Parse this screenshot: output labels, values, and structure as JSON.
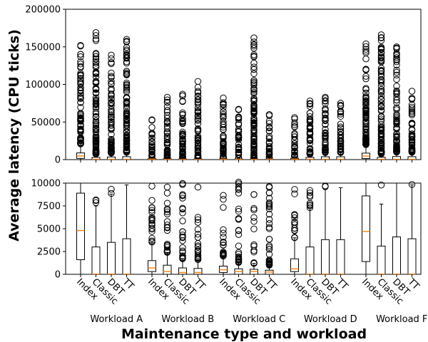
{
  "chart_data": {
    "type": "boxplot",
    "title": "",
    "xlabel": "Maintenance type and workload",
    "ylabel": "Average latency (CPU ticks)",
    "legend": "none",
    "grid": false,
    "categories": [
      "Index",
      "Classic",
      "DBT",
      "TT"
    ],
    "workloads": [
      "Workload A",
      "Workload B",
      "Workload C",
      "Workload D",
      "Workload F"
    ],
    "panels": [
      {
        "name": "top",
        "ylim": [
          0,
          200000
        ],
        "yticks": [
          0,
          50000,
          100000,
          150000,
          200000
        ]
      },
      {
        "name": "bottom-zoom",
        "ylim": [
          0,
          10000
        ],
        "yticks": [
          0,
          2500,
          5000,
          7500,
          10000
        ]
      }
    ],
    "boxes": [
      {
        "workload": "Workload A",
        "category": "Index",
        "q1": 1600,
        "median": 4800,
        "q3": 8900,
        "whisker_low": 0,
        "whisker_high": 21000,
        "flier_max": 152000
      },
      {
        "workload": "Workload A",
        "category": "Classic",
        "q1": 0,
        "median": 0,
        "q3": 3000,
        "whisker_low": 0,
        "whisker_high": 7500,
        "flier_max": 169000
      },
      {
        "workload": "Workload A",
        "category": "DBT",
        "q1": 0,
        "median": 0,
        "q3": 3500,
        "whisker_low": 0,
        "whisker_high": 8800,
        "flier_max": 139000
      },
      {
        "workload": "Workload A",
        "category": "TT",
        "q1": 0,
        "median": 0,
        "q3": 3900,
        "whisker_low": 0,
        "whisker_high": 9800,
        "flier_max": 160000
      },
      {
        "workload": "Workload B",
        "category": "Index",
        "q1": 300,
        "median": 700,
        "q3": 1500,
        "whisker_low": 0,
        "whisker_high": 3500,
        "flier_max": 53000
      },
      {
        "workload": "Workload B",
        "category": "Classic",
        "q1": 0,
        "median": 300,
        "q3": 1000,
        "whisker_low": 0,
        "whisker_high": 2400,
        "flier_max": 83000
      },
      {
        "workload": "Workload B",
        "category": "DBT",
        "q1": 0,
        "median": 200,
        "q3": 700,
        "whisker_low": 0,
        "whisker_high": 1700,
        "flier_max": 87000
      },
      {
        "workload": "Workload B",
        "category": "TT",
        "q1": 0,
        "median": 200,
        "q3": 650,
        "whisker_low": 0,
        "whisker_high": 1600,
        "flier_max": 104000
      },
      {
        "workload": "Workload C",
        "category": "Index",
        "q1": 200,
        "median": 500,
        "q3": 900,
        "whisker_low": 0,
        "whisker_high": 2000,
        "flier_max": 82000
      },
      {
        "workload": "Workload C",
        "category": "Classic",
        "q1": 0,
        "median": 300,
        "q3": 600,
        "whisker_low": 0,
        "whisker_high": 1300,
        "flier_max": 67000
      },
      {
        "workload": "Workload C",
        "category": "DBT",
        "q1": 0,
        "median": 300,
        "q3": 550,
        "whisker_low": 0,
        "whisker_high": 1200,
        "flier_max": 162000
      },
      {
        "workload": "Workload C",
        "category": "TT",
        "q1": 0,
        "median": 250,
        "q3": 450,
        "whisker_low": 0,
        "whisker_high": 1000,
        "flier_max": 60000
      },
      {
        "workload": "Workload D",
        "category": "Index",
        "q1": 300,
        "median": 600,
        "q3": 1700,
        "whisker_low": 0,
        "whisker_high": 4000,
        "flier_max": 56000
      },
      {
        "workload": "Workload D",
        "category": "Classic",
        "q1": 0,
        "median": 0,
        "q3": 3000,
        "whisker_low": 0,
        "whisker_high": 7300,
        "flier_max": 78000
      },
      {
        "workload": "Workload D",
        "category": "DBT",
        "q1": 0,
        "median": 0,
        "q3": 3800,
        "whisker_low": 0,
        "whisker_high": 9300,
        "flier_max": 83000
      },
      {
        "workload": "Workload D",
        "category": "TT",
        "q1": 0,
        "median": 0,
        "q3": 3800,
        "whisker_low": 0,
        "whisker_high": 9500,
        "flier_max": 75000
      },
      {
        "workload": "Workload F",
        "category": "Index",
        "q1": 1400,
        "median": 4700,
        "q3": 8600,
        "whisker_low": 0,
        "whisker_high": 20000,
        "flier_max": 154000
      },
      {
        "workload": "Workload F",
        "category": "Classic",
        "q1": 0,
        "median": 0,
        "q3": 3100,
        "whisker_low": 0,
        "whisker_high": 7700,
        "flier_max": 166000
      },
      {
        "workload": "Workload F",
        "category": "DBT",
        "q1": 0,
        "median": 0,
        "q3": 4100,
        "whisker_low": 0,
        "whisker_high": 10000,
        "flier_max": 150000
      },
      {
        "workload": "Workload F",
        "category": "TT",
        "q1": 0,
        "median": 0,
        "q3": 3900,
        "whisker_low": 0,
        "whisker_high": 9800,
        "flier_max": 91000
      }
    ],
    "colors": {
      "median": "#ff7f0e",
      "box": "#000000"
    }
  }
}
